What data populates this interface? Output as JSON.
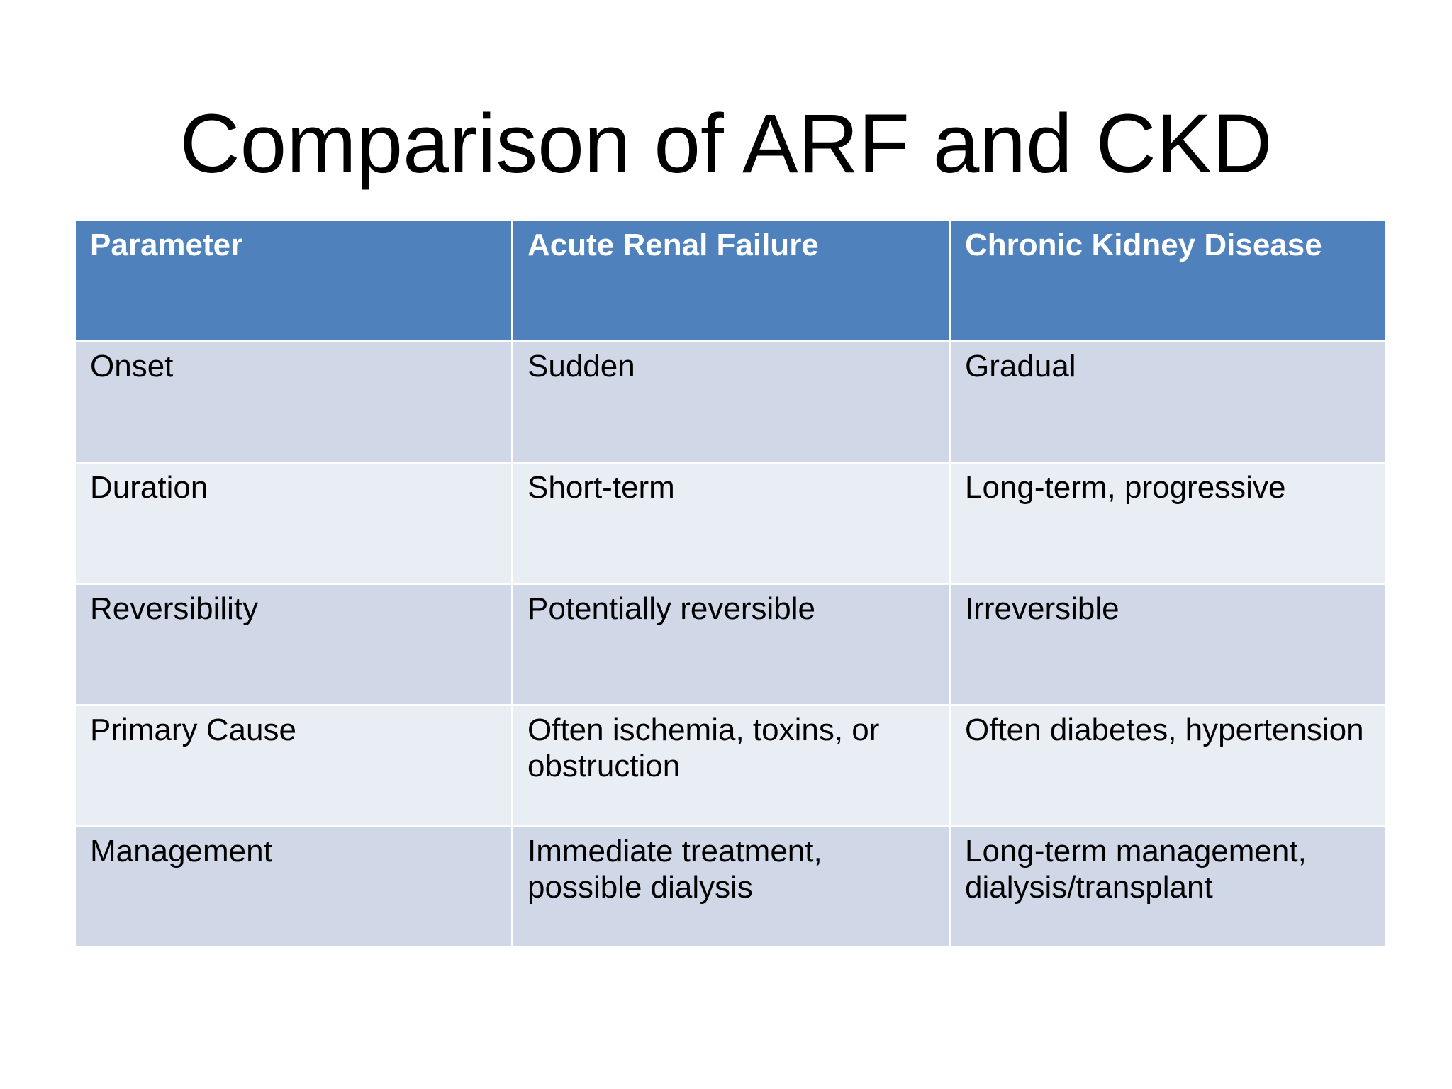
{
  "slide": {
    "title": "Comparison of ARF and CKD"
  },
  "table": {
    "headers": [
      "Parameter",
      "Acute Renal Failure",
      "Chronic Kidney Disease"
    ],
    "rows": [
      [
        "Onset",
        "Sudden",
        "Gradual"
      ],
      [
        "Duration",
        "Short-term",
        "Long-term, progressive"
      ],
      [
        "Reversibility",
        "Potentially reversible",
        "Irreversible"
      ],
      [
        "Primary Cause",
        "Often ischemia, toxins, or obstruction",
        "Often diabetes, hypertension"
      ],
      [
        "Management",
        "Immediate treatment, possible dialysis",
        "Long-term management, dialysis/transplant"
      ]
    ]
  },
  "colors": {
    "header_bg": "#4f81bd",
    "band_dark": "#d0d8e8",
    "band_light": "#e9edf4"
  }
}
